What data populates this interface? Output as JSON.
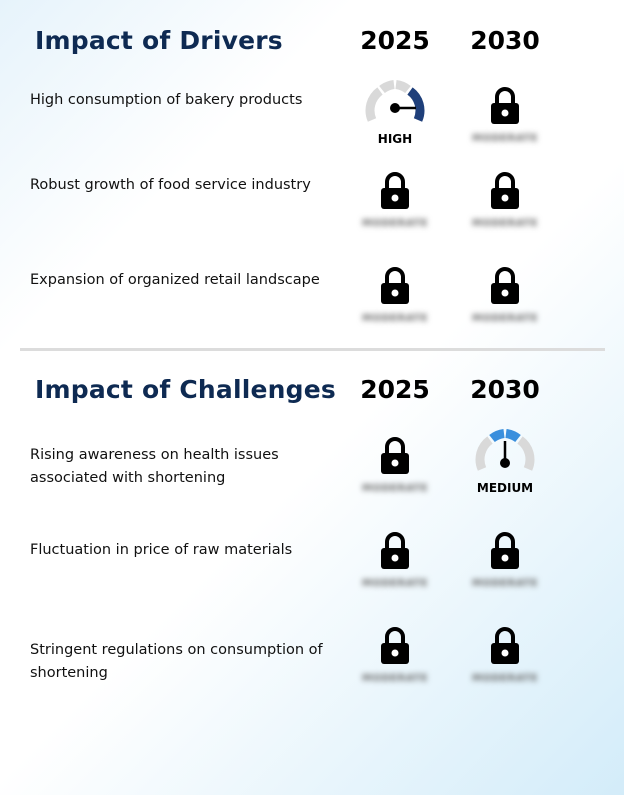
{
  "drivers": {
    "title": "Impact of Drivers",
    "year_a": "2025",
    "year_b": "2030",
    "rows": [
      {
        "label": "High consumption of bakery products",
        "a": {
          "type": "gauge",
          "level": "HIGH"
        },
        "b": {
          "type": "locked"
        }
      },
      {
        "label": "Robust growth of food service industry",
        "a": {
          "type": "locked"
        },
        "b": {
          "type": "locked"
        }
      },
      {
        "label": "Expansion of organized retail landscape",
        "a": {
          "type": "locked"
        },
        "b": {
          "type": "locked"
        }
      }
    ]
  },
  "challenges": {
    "title": "Impact of Challenges",
    "year_a": "2025",
    "year_b": "2030",
    "rows": [
      {
        "label": "Rising awareness on health issues associated with shortening",
        "a": {
          "type": "locked"
        },
        "b": {
          "type": "gauge",
          "level": "MEDIUM"
        }
      },
      {
        "label": "Fluctuation in price of raw materials",
        "a": {
          "type": "locked"
        },
        "b": {
          "type": "locked"
        }
      },
      {
        "label": "Stringent regulations on consumption of shortening",
        "a": {
          "type": "locked"
        },
        "b": {
          "type": "locked"
        }
      }
    ]
  },
  "locked_placeholder": "MODERATE",
  "colors": {
    "title": "#0e2a52",
    "gauge_high": "#1f3f7a",
    "gauge_medium": "#3a8fdd",
    "gauge_track": "#d9d9d9"
  }
}
